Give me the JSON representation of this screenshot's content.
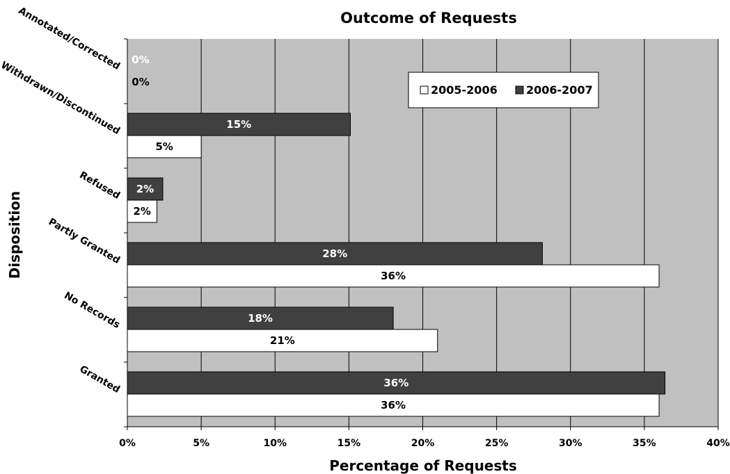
{
  "chart_data": {
    "type": "bar",
    "orientation": "horizontal",
    "title": "Outcome of Requests",
    "xlabel": "Percentage of  Requests",
    "ylabel": "Disposition",
    "categories": [
      "Annotated/Corrected",
      "Withdrawn/Discontinued",
      "Refused",
      "Partly Granted",
      "No Records",
      "Granted"
    ],
    "series": [
      {
        "name": "2005-2006",
        "color": "#ffffff",
        "values": [
          0,
          5,
          2,
          36,
          21,
          36
        ],
        "labels": [
          "0%",
          "5%",
          "2%",
          "36%",
          "21%",
          "36%"
        ]
      },
      {
        "name": "2006-2007",
        "color": "#404040",
        "values": [
          0,
          15.1,
          2.4,
          28.1,
          18.0,
          36.4
        ],
        "labels": [
          "0%",
          "15%",
          "2%",
          "28%",
          "18%",
          "36%"
        ]
      }
    ],
    "xlim": [
      0,
      40
    ],
    "xticks": [
      0,
      5,
      10,
      15,
      20,
      25,
      30,
      35,
      40
    ],
    "xtick_labels": [
      "0%",
      "5%",
      "10%",
      "15%",
      "20%",
      "25%",
      "30%",
      "35%",
      "40%"
    ],
    "grid": "vertical",
    "plot_background": "#c0c0c0",
    "legend_position": "top-right"
  }
}
